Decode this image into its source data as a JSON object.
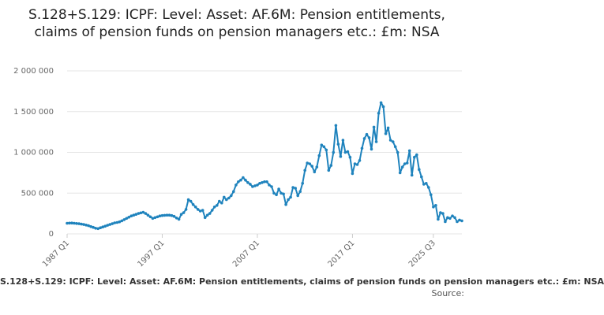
{
  "colors": {
    "series": "#1f83bd",
    "grid": "#e6e6e6",
    "text": "#666666"
  },
  "chart_data": {
    "type": "line",
    "title": "S.128+S.129: ICPF: Level: Asset: AF.6M: Pension entitlements, claims of pension funds on pension managers etc.: £m: NSA",
    "xlabel": "",
    "ylabel": "",
    "ylim": [
      0,
      2000000
    ],
    "yticks": [
      0,
      500000,
      1000000,
      1500000,
      2000000
    ],
    "ytick_labels": [
      "0",
      "500 000",
      "1 000 000",
      "1 500 000",
      "2 000 000"
    ],
    "xtick_labels": [
      "1987 Q1",
      "1997 Q1",
      "2007 Q1",
      "2017 Q1",
      "2025 Q3"
    ],
    "grid": true,
    "legend_position": "bottom",
    "legend_text": "S.128+S.129: ICPF: Level: Asset: AF.6M: Pension entitlements, claims of pension funds on pension managers etc.: £m: NSA",
    "source_text": "Source:",
    "series": [
      {
        "name": "S.128+S.129: ICPF: Level: Asset: AF.6M: Pension entitlements, claims of pension funds on pension managers etc.: £m: NSA",
        "points": [
          [
            "1987 Q1",
            130000
          ],
          [
            "1987 Q2",
            132000
          ],
          [
            "1987 Q3",
            133000
          ],
          [
            "1987 Q4",
            130000
          ],
          [
            "1988 Q1",
            128000
          ],
          [
            "1988 Q2",
            125000
          ],
          [
            "1988 Q3",
            120000
          ],
          [
            "1988 Q4",
            115000
          ],
          [
            "1989 Q1",
            108000
          ],
          [
            "1989 Q2",
            100000
          ],
          [
            "1989 Q3",
            90000
          ],
          [
            "1989 Q4",
            80000
          ],
          [
            "1990 Q1",
            70000
          ],
          [
            "1990 Q2",
            65000
          ],
          [
            "1990 Q3",
            75000
          ],
          [
            "1990 Q4",
            85000
          ],
          [
            "1991 Q1",
            95000
          ],
          [
            "1991 Q2",
            105000
          ],
          [
            "1991 Q3",
            115000
          ],
          [
            "1991 Q4",
            125000
          ],
          [
            "1992 Q1",
            135000
          ],
          [
            "1992 Q2",
            140000
          ],
          [
            "1992 Q3",
            148000
          ],
          [
            "1992 Q4",
            160000
          ],
          [
            "1993 Q1",
            175000
          ],
          [
            "1993 Q2",
            190000
          ],
          [
            "1993 Q3",
            205000
          ],
          [
            "1993 Q4",
            220000
          ],
          [
            "1994 Q1",
            230000
          ],
          [
            "1994 Q2",
            240000
          ],
          [
            "1994 Q3",
            250000
          ],
          [
            "1994 Q4",
            258000
          ],
          [
            "1995 Q1",
            265000
          ],
          [
            "1995 Q2",
            250000
          ],
          [
            "1995 Q3",
            230000
          ],
          [
            "1995 Q4",
            210000
          ],
          [
            "1996 Q1",
            190000
          ],
          [
            "1996 Q2",
            200000
          ],
          [
            "1996 Q3",
            210000
          ],
          [
            "1996 Q4",
            220000
          ],
          [
            "1997 Q1",
            225000
          ],
          [
            "1997 Q2",
            228000
          ],
          [
            "1997 Q3",
            230000
          ],
          [
            "1997 Q4",
            230000
          ],
          [
            "1998 Q1",
            225000
          ],
          [
            "1998 Q2",
            215000
          ],
          [
            "1998 Q3",
            195000
          ],
          [
            "1998 Q4",
            180000
          ],
          [
            "1999 Q1",
            240000
          ],
          [
            "1999 Q2",
            260000
          ],
          [
            "1999 Q3",
            300000
          ],
          [
            "1999 Q4",
            420000
          ],
          [
            "2000 Q1",
            400000
          ],
          [
            "2000 Q2",
            360000
          ],
          [
            "2000 Q3",
            330000
          ],
          [
            "2000 Q4",
            300000
          ],
          [
            "2001 Q1",
            280000
          ],
          [
            "2001 Q2",
            290000
          ],
          [
            "2001 Q3",
            200000
          ],
          [
            "2001 Q4",
            230000
          ],
          [
            "2002 Q1",
            250000
          ],
          [
            "2002 Q2",
            290000
          ],
          [
            "2002 Q3",
            330000
          ],
          [
            "2002 Q4",
            350000
          ],
          [
            "2003 Q1",
            400000
          ],
          [
            "2003 Q2",
            380000
          ],
          [
            "2003 Q3",
            450000
          ],
          [
            "2003 Q4",
            420000
          ],
          [
            "2004 Q1",
            440000
          ],
          [
            "2004 Q2",
            470000
          ],
          [
            "2004 Q3",
            520000
          ],
          [
            "2004 Q4",
            600000
          ],
          [
            "2005 Q1",
            640000
          ],
          [
            "2005 Q2",
            660000
          ],
          [
            "2005 Q3",
            690000
          ],
          [
            "2005 Q4",
            660000
          ],
          [
            "2006 Q1",
            630000
          ],
          [
            "2006 Q2",
            610000
          ],
          [
            "2006 Q3",
            580000
          ],
          [
            "2006 Q4",
            590000
          ],
          [
            "2007 Q1",
            600000
          ],
          [
            "2007 Q2",
            620000
          ],
          [
            "2007 Q3",
            630000
          ],
          [
            "2007 Q4",
            640000
          ],
          [
            "2008 Q1",
            640000
          ],
          [
            "2008 Q2",
            600000
          ],
          [
            "2008 Q3",
            580000
          ],
          [
            "2008 Q4",
            500000
          ],
          [
            "2009 Q1",
            480000
          ],
          [
            "2009 Q2",
            550000
          ],
          [
            "2009 Q3",
            500000
          ],
          [
            "2009 Q4",
            490000
          ],
          [
            "2010 Q1",
            360000
          ],
          [
            "2010 Q2",
            420000
          ],
          [
            "2010 Q3",
            450000
          ],
          [
            "2010 Q4",
            570000
          ],
          [
            "2011 Q1",
            560000
          ],
          [
            "2011 Q2",
            470000
          ],
          [
            "2011 Q3",
            520000
          ],
          [
            "2011 Q4",
            620000
          ],
          [
            "2012 Q1",
            780000
          ],
          [
            "2012 Q2",
            870000
          ],
          [
            "2012 Q3",
            860000
          ],
          [
            "2012 Q4",
            830000
          ],
          [
            "2013 Q1",
            760000
          ],
          [
            "2013 Q2",
            820000
          ],
          [
            "2013 Q3",
            960000
          ],
          [
            "2013 Q4",
            1090000
          ],
          [
            "2014 Q1",
            1070000
          ],
          [
            "2014 Q2",
            1030000
          ],
          [
            "2014 Q3",
            780000
          ],
          [
            "2014 Q4",
            840000
          ],
          [
            "2015 Q1",
            1000000
          ],
          [
            "2015 Q2",
            1330000
          ],
          [
            "2015 Q3",
            1100000
          ],
          [
            "2015 Q4",
            950000
          ],
          [
            "2016 Q1",
            1150000
          ],
          [
            "2016 Q2",
            1000000
          ],
          [
            "2016 Q3",
            1010000
          ],
          [
            "2016 Q4",
            940000
          ],
          [
            "2017 Q1",
            740000
          ],
          [
            "2017 Q2",
            860000
          ],
          [
            "2017 Q3",
            850000
          ],
          [
            "2017 Q4",
            900000
          ],
          [
            "2018 Q1",
            1050000
          ],
          [
            "2018 Q2",
            1170000
          ],
          [
            "2018 Q3",
            1220000
          ],
          [
            "2018 Q4",
            1180000
          ],
          [
            "2019 Q1",
            1040000
          ],
          [
            "2019 Q2",
            1310000
          ],
          [
            "2019 Q3",
            1130000
          ],
          [
            "2019 Q4",
            1480000
          ],
          [
            "2020 Q1",
            1610000
          ],
          [
            "2020 Q2",
            1560000
          ],
          [
            "2020 Q3",
            1230000
          ],
          [
            "2020 Q4",
            1300000
          ],
          [
            "2021 Q1",
            1150000
          ],
          [
            "2021 Q2",
            1130000
          ],
          [
            "2021 Q3",
            1070000
          ],
          [
            "2021 Q4",
            1000000
          ],
          [
            "2022 Q1",
            750000
          ],
          [
            "2022 Q2",
            820000
          ],
          [
            "2022 Q3",
            860000
          ],
          [
            "2022 Q4",
            870000
          ],
          [
            "2023 Q1",
            1020000
          ],
          [
            "2023 Q2",
            720000
          ],
          [
            "2023 Q3",
            940000
          ],
          [
            "2023 Q4",
            970000
          ],
          [
            "2024 Q1",
            790000
          ],
          [
            "2024 Q2",
            700000
          ],
          [
            "2024 Q3",
            610000
          ],
          [
            "2024 Q4",
            620000
          ],
          [
            "2025 Q1",
            570000
          ],
          [
            "2025 Q2",
            480000
          ],
          [
            "2025 Q3",
            330000
          ],
          [
            "2025 Q3a",
            350000
          ],
          [
            "2025 Q3b",
            180000
          ],
          [
            "2025 Q3c",
            260000
          ],
          [
            "2025 Q3d",
            250000
          ],
          [
            "2025 Q3e",
            150000
          ],
          [
            "2025 Q3f",
            200000
          ],
          [
            "2025 Q3g",
            190000
          ],
          [
            "2025 Q3h",
            220000
          ],
          [
            "2025 Q3i",
            200000
          ],
          [
            "2025 Q3j",
            150000
          ],
          [
            "2025 Q3k",
            170000
          ],
          [
            "2025 Q3l",
            160000
          ]
        ]
      }
    ]
  }
}
